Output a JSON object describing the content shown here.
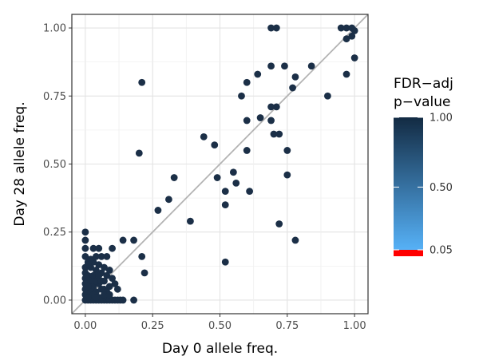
{
  "chart_data": {
    "type": "scatter",
    "xlabel": "Day 0 allele freq.",
    "ylabel": "Day 28 allele freq.",
    "xlim": [
      -0.05,
      1.05
    ],
    "ylim": [
      -0.05,
      1.05
    ],
    "x_ticks": [
      0,
      0.25,
      0.5,
      0.75,
      1
    ],
    "x_tick_labels": [
      "0.00",
      "0.25",
      "0.50",
      "0.75",
      "1.00"
    ],
    "y_ticks": [
      0,
      0.25,
      0.5,
      0.75,
      1
    ],
    "y_tick_labels": [
      "0.00",
      "0.25",
      "0.50",
      "0.75",
      "1.00"
    ],
    "grid": true,
    "reference_line": "y = x",
    "point_color": "#1b2f47",
    "colorbar": {
      "title_line1": "FDR−adj",
      "title_line2": "p−value",
      "tick_values": [
        1.0,
        0.5,
        0.05
      ],
      "tick_labels": [
        "1.00",
        "0.50",
        "0.05"
      ],
      "color_high": "#132b43",
      "color_low": "#56b1f7",
      "color_below_threshold": "#ff0000",
      "position": "right"
    },
    "points": [
      [
        0.69,
        1.0
      ],
      [
        0.71,
        1.0
      ],
      [
        0.95,
        1.0
      ],
      [
        0.97,
        1.0
      ],
      [
        0.99,
        1.0
      ],
      [
        1.0,
        0.99
      ],
      [
        0.97,
        0.96
      ],
      [
        0.99,
        0.97
      ],
      [
        1.0,
        0.89
      ],
      [
        0.97,
        0.83
      ],
      [
        0.21,
        0.8
      ],
      [
        0.2,
        0.54
      ],
      [
        0.6,
        0.8
      ],
      [
        0.58,
        0.75
      ],
      [
        0.64,
        0.83
      ],
      [
        0.69,
        0.86
      ],
      [
        0.74,
        0.86
      ],
      [
        0.78,
        0.82
      ],
      [
        0.77,
        0.78
      ],
      [
        0.84,
        0.86
      ],
      [
        0.9,
        0.75
      ],
      [
        0.71,
        0.71
      ],
      [
        0.69,
        0.71
      ],
      [
        0.6,
        0.66
      ],
      [
        0.65,
        0.67
      ],
      [
        0.69,
        0.66
      ],
      [
        0.7,
        0.61
      ],
      [
        0.72,
        0.61
      ],
      [
        0.44,
        0.6
      ],
      [
        0.48,
        0.57
      ],
      [
        0.75,
        0.55
      ],
      [
        0.6,
        0.55
      ],
      [
        0.75,
        0.46
      ],
      [
        0.33,
        0.45
      ],
      [
        0.49,
        0.45
      ],
      [
        0.55,
        0.47
      ],
      [
        0.52,
        0.4
      ],
      [
        0.56,
        0.43
      ],
      [
        0.61,
        0.4
      ],
      [
        0.52,
        0.35
      ],
      [
        0.31,
        0.37
      ],
      [
        0.27,
        0.33
      ],
      [
        0.39,
        0.29
      ],
      [
        0.72,
        0.28
      ],
      [
        0.78,
        0.22
      ],
      [
        0.52,
        0.14
      ],
      [
        0.14,
        0.22
      ],
      [
        0.18,
        0.22
      ],
      [
        0.21,
        0.16
      ],
      [
        0.22,
        0.1
      ],
      [
        0.18,
        0.0
      ],
      [
        0.0,
        0.25
      ],
      [
        0.0,
        0.22
      ],
      [
        0.0,
        0.19
      ],
      [
        0.03,
        0.19
      ],
      [
        0.05,
        0.19
      ],
      [
        0.06,
        0.16
      ],
      [
        0.08,
        0.16
      ],
      [
        0.1,
        0.19
      ],
      [
        0.0,
        0.16
      ],
      [
        0.01,
        0.14
      ],
      [
        0.02,
        0.12
      ],
      [
        0.03,
        0.14
      ],
      [
        0.04,
        0.11
      ],
      [
        0.05,
        0.13
      ],
      [
        0.06,
        0.1
      ],
      [
        0.07,
        0.12
      ],
      [
        0.08,
        0.09
      ],
      [
        0.09,
        0.11
      ],
      [
        0.1,
        0.08
      ],
      [
        0.11,
        0.06
      ],
      [
        0.12,
        0.04
      ],
      [
        0.09,
        0.05
      ],
      [
        0.07,
        0.07
      ],
      [
        0.0,
        0.12
      ],
      [
        0.0,
        0.1
      ],
      [
        0.0,
        0.08
      ],
      [
        0.0,
        0.06
      ],
      [
        0.0,
        0.04
      ],
      [
        0.0,
        0.02
      ],
      [
        0.0,
        0.0
      ],
      [
        0.01,
        0.09
      ],
      [
        0.02,
        0.07
      ],
      [
        0.03,
        0.05
      ],
      [
        0.04,
        0.03
      ],
      [
        0.05,
        0.06
      ],
      [
        0.06,
        0.04
      ],
      [
        0.02,
        0.03
      ],
      [
        0.01,
        0.05
      ],
      [
        0.03,
        0.09
      ],
      [
        0.04,
        0.07
      ],
      [
        0.05,
        0.09
      ],
      [
        0.06,
        0.07
      ],
      [
        0.07,
        0.04
      ],
      [
        0.08,
        0.03
      ],
      [
        0.01,
        0.13
      ],
      [
        0.02,
        0.15
      ],
      [
        0.04,
        0.16
      ],
      [
        0.01,
        0.0
      ],
      [
        0.02,
        0.0
      ],
      [
        0.03,
        0.0
      ],
      [
        0.04,
        0.0
      ],
      [
        0.05,
        0.0
      ],
      [
        0.06,
        0.0
      ],
      [
        0.07,
        0.0
      ],
      [
        0.08,
        0.0
      ],
      [
        0.09,
        0.0
      ],
      [
        0.1,
        0.0
      ],
      [
        0.11,
        0.0
      ],
      [
        0.12,
        0.0
      ],
      [
        0.13,
        0.0
      ],
      [
        0.14,
        0.0
      ],
      [
        0.02,
        0.01
      ],
      [
        0.03,
        0.02
      ],
      [
        0.05,
        0.01
      ],
      [
        0.07,
        0.02
      ],
      [
        0.09,
        0.02
      ],
      [
        0.01,
        0.01
      ],
      [
        0.04,
        0.01
      ]
    ]
  }
}
